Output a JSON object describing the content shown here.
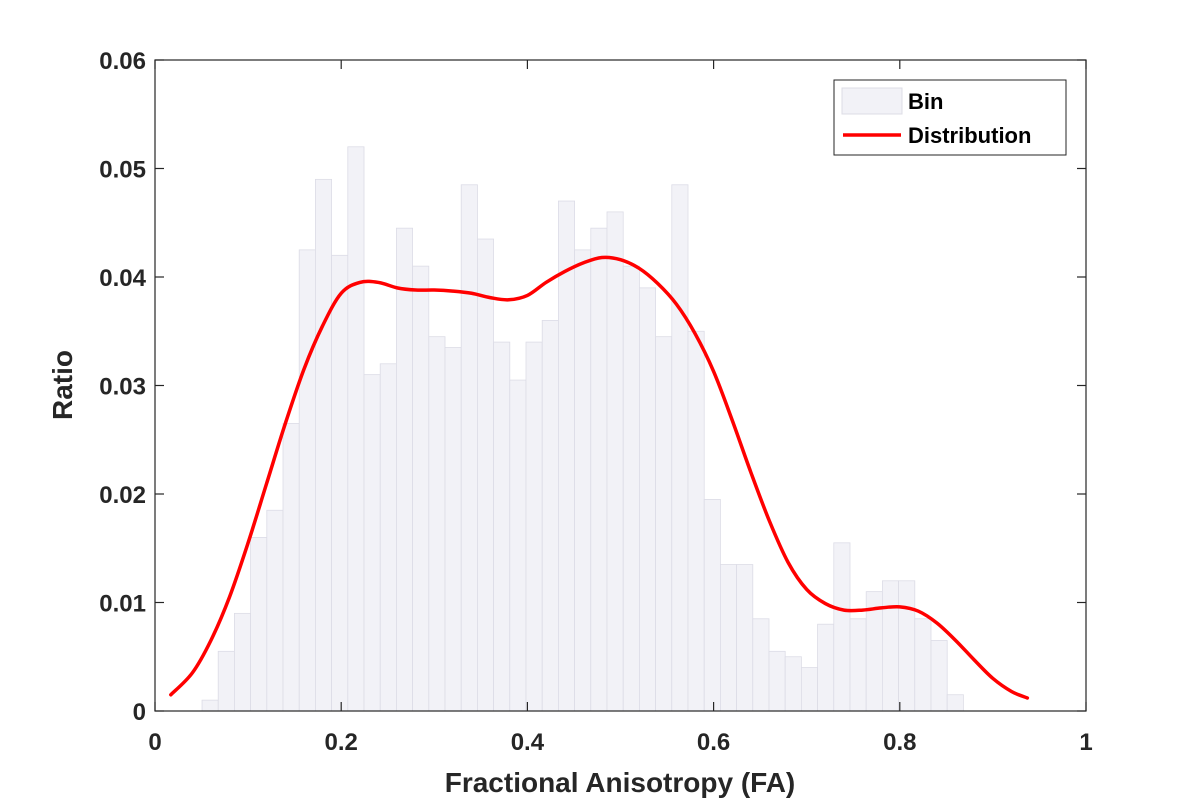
{
  "chart_data": {
    "type": "bar",
    "xlabel": "Fractional Anisotropy (FA)",
    "ylabel": "Ratio",
    "xlim": [
      0,
      1
    ],
    "ylim": [
      0,
      0.06
    ],
    "xticks": [
      0,
      0.2,
      0.4,
      0.6,
      0.8,
      1
    ],
    "xtick_labels": [
      "0",
      "0.2",
      "0.4",
      "0.6",
      "0.8",
      "1"
    ],
    "yticks": [
      0,
      0.01,
      0.02,
      0.03,
      0.04,
      0.05,
      0.06
    ],
    "ytick_labels": [
      "0",
      "0.01",
      "0.02",
      "0.03",
      "0.04",
      "0.05",
      "0.06"
    ],
    "bin_width": 0.0174,
    "bin_start": 0.0505,
    "series": [
      {
        "name": "Bin",
        "kind": "histogram",
        "color": "#f2f2f7",
        "edge_color": "#dcdce6",
        "values": [
          0.001,
          0.0055,
          0.009,
          0.016,
          0.0185,
          0.0265,
          0.0425,
          0.049,
          0.042,
          0.052,
          0.031,
          0.032,
          0.0445,
          0.041,
          0.0345,
          0.0335,
          0.0485,
          0.0435,
          0.034,
          0.0305,
          0.034,
          0.036,
          0.047,
          0.0425,
          0.0445,
          0.046,
          0.041,
          0.039,
          0.0345,
          0.0485,
          0.035,
          0.0195,
          0.0135,
          0.0135,
          0.0085,
          0.0055,
          0.005,
          0.004,
          0.008,
          0.0155,
          0.0085,
          0.011,
          0.012,
          0.012,
          0.0085,
          0.0065,
          0.0015
        ]
      },
      {
        "name": "Distribution",
        "kind": "line",
        "color": "#ff0000",
        "x": [
          0.017,
          0.04,
          0.06,
          0.08,
          0.1,
          0.12,
          0.14,
          0.16,
          0.18,
          0.2,
          0.22,
          0.24,
          0.26,
          0.28,
          0.3,
          0.32,
          0.34,
          0.36,
          0.38,
          0.4,
          0.42,
          0.44,
          0.46,
          0.48,
          0.5,
          0.52,
          0.54,
          0.56,
          0.58,
          0.6,
          0.62,
          0.64,
          0.66,
          0.68,
          0.7,
          0.72,
          0.74,
          0.76,
          0.78,
          0.8,
          0.82,
          0.84,
          0.86,
          0.88,
          0.9,
          0.92,
          0.937
        ],
        "y": [
          0.0015,
          0.0035,
          0.0065,
          0.0105,
          0.0155,
          0.021,
          0.0265,
          0.0315,
          0.0355,
          0.0385,
          0.0395,
          0.0395,
          0.039,
          0.0388,
          0.0388,
          0.0387,
          0.0385,
          0.0381,
          0.0379,
          0.0383,
          0.0395,
          0.0405,
          0.0413,
          0.0418,
          0.0416,
          0.0408,
          0.0394,
          0.0375,
          0.0348,
          0.0313,
          0.0268,
          0.022,
          0.0175,
          0.0137,
          0.0112,
          0.0099,
          0.0093,
          0.0093,
          0.0095,
          0.0096,
          0.0092,
          0.0081,
          0.0065,
          0.0047,
          0.003,
          0.0018,
          0.0012
        ]
      }
    ],
    "legend": {
      "location": "top-right",
      "entries": [
        "Bin",
        "Distribution"
      ]
    }
  }
}
